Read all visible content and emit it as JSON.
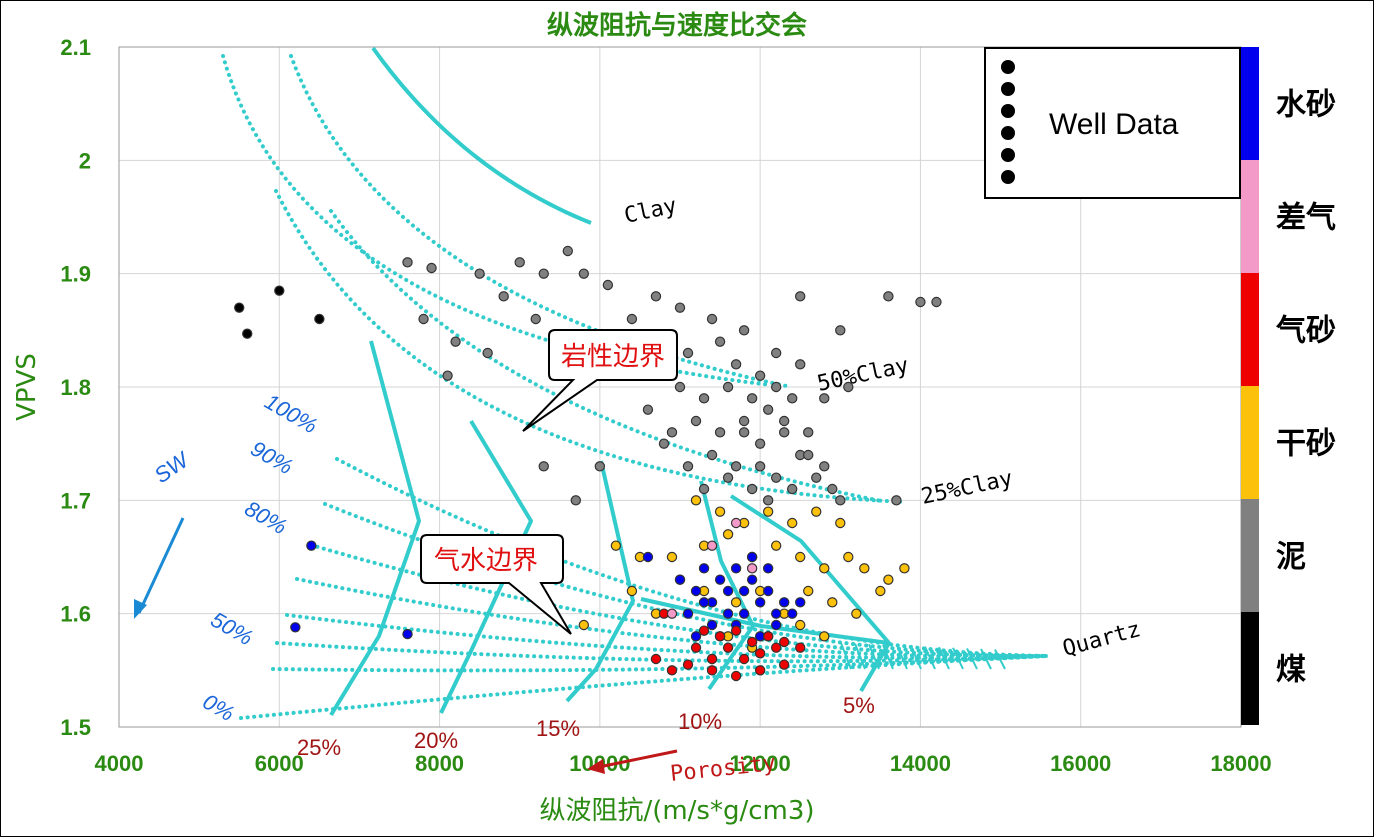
{
  "chart_data": {
    "type": "scatter",
    "title": "纵波阻抗与速度比交会",
    "xlabel": "纵波阻抗/(m/s*g/cm3)",
    "ylabel": "VPVS",
    "xlim": [
      4000,
      18000
    ],
    "ylim": [
      1.5,
      2.1
    ],
    "xticks": [
      "4000",
      "6000",
      "8000",
      "10000",
      "12000",
      "14000",
      "16000",
      "18000"
    ],
    "yticks": [
      "1.5",
      "1.6",
      "1.7",
      "1.8",
      "1.9",
      "2",
      "2.1"
    ],
    "grid": true,
    "legend": {
      "placement": "top-right",
      "label": "Well Data"
    },
    "colorbar": [
      {
        "label": "水砂",
        "color": "#0000ee"
      },
      {
        "label": "差气",
        "color": "#f49ac8"
      },
      {
        "label": "气砂",
        "color": "#ee0000"
      },
      {
        "label": "干砂",
        "color": "#fcc10a"
      },
      {
        "label": "泥",
        "color": "#808080"
      },
      {
        "label": "煤",
        "color": "#000000"
      }
    ],
    "model_labels": {
      "clay": "Clay",
      "clay50": "50%Clay",
      "clay25": "25%Clay",
      "quartz": "Quartz",
      "porosity_axis": "Porosity"
    },
    "sw_labels": [
      "SW",
      "100%",
      "90%",
      "80%",
      "50%",
      "0%"
    ],
    "porosity_labels": [
      "25%",
      "20%",
      "15%",
      "10%",
      "5%"
    ],
    "callouts": [
      "岩性边界",
      "气水边界"
    ],
    "series": [
      {
        "name": "泥",
        "color": "#808080",
        "points": [
          [
            7600,
            1.91
          ],
          [
            7900,
            1.905
          ],
          [
            8500,
            1.9
          ],
          [
            8800,
            1.88
          ],
          [
            9000,
            1.91
          ],
          [
            9300,
            1.9
          ],
          [
            9600,
            1.92
          ],
          [
            9800,
            1.9
          ],
          [
            10100,
            1.89
          ],
          [
            10400,
            1.86
          ],
          [
            10700,
            1.88
          ],
          [
            11000,
            1.87
          ],
          [
            11400,
            1.86
          ],
          [
            11800,
            1.85
          ],
          [
            12500,
            1.88
          ],
          [
            13000,
            1.85
          ],
          [
            13600,
            1.88
          ],
          [
            14000,
            1.875
          ],
          [
            14200,
            1.875
          ],
          [
            7800,
            1.86
          ],
          [
            8200,
            1.84
          ],
          [
            8600,
            1.83
          ],
          [
            8100,
            1.81
          ],
          [
            9200,
            1.86
          ],
          [
            9500,
            1.84
          ],
          [
            10200,
            1.82
          ],
          [
            10500,
            1.84
          ],
          [
            10800,
            1.82
          ],
          [
            11100,
            1.83
          ],
          [
            11500,
            1.84
          ],
          [
            11700,
            1.82
          ],
          [
            12000,
            1.81
          ],
          [
            12200,
            1.83
          ],
          [
            12500,
            1.82
          ],
          [
            12800,
            1.79
          ],
          [
            13100,
            1.8
          ],
          [
            11000,
            1.8
          ],
          [
            11300,
            1.79
          ],
          [
            11600,
            1.8
          ],
          [
            11900,
            1.79
          ],
          [
            12100,
            1.78
          ],
          [
            12300,
            1.77
          ],
          [
            11200,
            1.77
          ],
          [
            11500,
            1.76
          ],
          [
            11800,
            1.77
          ],
          [
            12000,
            1.75
          ],
          [
            12300,
            1.76
          ],
          [
            12600,
            1.76
          ],
          [
            11400,
            1.74
          ],
          [
            11700,
            1.73
          ],
          [
            12000,
            1.73
          ],
          [
            12200,
            1.72
          ],
          [
            12500,
            1.74
          ],
          [
            12800,
            1.73
          ],
          [
            11900,
            1.71
          ],
          [
            12100,
            1.7
          ],
          [
            12400,
            1.71
          ],
          [
            12700,
            1.72
          ],
          [
            13000,
            1.7
          ],
          [
            10800,
            1.75
          ],
          [
            11100,
            1.73
          ],
          [
            10600,
            1.78
          ],
          [
            10900,
            1.76
          ],
          [
            9700,
            1.7
          ],
          [
            9300,
            1.73
          ],
          [
            10000,
            1.73
          ],
          [
            13700,
            1.7
          ],
          [
            12600,
            1.74
          ],
          [
            12900,
            1.71
          ],
          [
            11600,
            1.72
          ],
          [
            11300,
            1.71
          ],
          [
            12200,
            1.8
          ],
          [
            11800,
            1.76
          ],
          [
            12400,
            1.79
          ]
        ]
      },
      {
        "name": "干砂",
        "color": "#fcc10a",
        "points": [
          [
            11200,
            1.7
          ],
          [
            11500,
            1.69
          ],
          [
            11800,
            1.68
          ],
          [
            12100,
            1.69
          ],
          [
            12400,
            1.68
          ],
          [
            12700,
            1.69
          ],
          [
            13000,
            1.68
          ],
          [
            11300,
            1.66
          ],
          [
            11600,
            1.67
          ],
          [
            11900,
            1.65
          ],
          [
            12200,
            1.66
          ],
          [
            12500,
            1.65
          ],
          [
            12800,
            1.64
          ],
          [
            13100,
            1.65
          ],
          [
            13300,
            1.64
          ],
          [
            10900,
            1.65
          ],
          [
            11000,
            1.63
          ],
          [
            11300,
            1.62
          ],
          [
            12600,
            1.62
          ],
          [
            12900,
            1.61
          ],
          [
            13200,
            1.6
          ],
          [
            13500,
            1.62
          ],
          [
            12300,
            1.6
          ],
          [
            12500,
            1.59
          ],
          [
            12800,
            1.58
          ],
          [
            12100,
            1.58
          ],
          [
            11900,
            1.57
          ],
          [
            11600,
            1.58
          ],
          [
            11400,
            1.56
          ],
          [
            10400,
            1.62
          ],
          [
            10700,
            1.6
          ],
          [
            9800,
            1.59
          ],
          [
            10200,
            1.66
          ],
          [
            10500,
            1.65
          ],
          [
            13600,
            1.63
          ],
          [
            13800,
            1.64
          ],
          [
            12000,
            1.62
          ],
          [
            11700,
            1.61
          ]
        ]
      },
      {
        "name": "水砂",
        "color": "#0000ee",
        "points": [
          [
            11000,
            1.63
          ],
          [
            11200,
            1.62
          ],
          [
            11400,
            1.61
          ],
          [
            11600,
            1.6
          ],
          [
            11800,
            1.62
          ],
          [
            12000,
            1.61
          ],
          [
            12200,
            1.6
          ],
          [
            11300,
            1.64
          ],
          [
            11500,
            1.63
          ],
          [
            11700,
            1.64
          ],
          [
            11900,
            1.63
          ],
          [
            12100,
            1.62
          ],
          [
            12300,
            1.61
          ],
          [
            11100,
            1.6
          ],
          [
            11400,
            1.59
          ],
          [
            11700,
            1.59
          ],
          [
            12000,
            1.58
          ],
          [
            12200,
            1.59
          ],
          [
            12400,
            1.6
          ],
          [
            11200,
            1.58
          ],
          [
            11500,
            1.58
          ],
          [
            11800,
            1.6
          ],
          [
            11600,
            1.62
          ],
          [
            11900,
            1.65
          ],
          [
            12100,
            1.64
          ],
          [
            11300,
            1.61
          ],
          [
            12500,
            1.61
          ],
          [
            6400,
            1.66
          ],
          [
            6200,
            1.588
          ],
          [
            7600,
            1.582
          ],
          [
            9300,
            1.652
          ],
          [
            10600,
            1.65
          ]
        ]
      },
      {
        "name": "气砂",
        "color": "#ee0000",
        "points": [
          [
            11200,
            1.57
          ],
          [
            11400,
            1.56
          ],
          [
            11600,
            1.57
          ],
          [
            11800,
            1.56
          ],
          [
            12000,
            1.565
          ],
          [
            12200,
            1.57
          ],
          [
            11300,
            1.585
          ],
          [
            11500,
            1.58
          ],
          [
            11700,
            1.585
          ],
          [
            11900,
            1.575
          ],
          [
            12100,
            1.58
          ],
          [
            12300,
            1.575
          ],
          [
            12500,
            1.57
          ],
          [
            11100,
            1.555
          ],
          [
            11400,
            1.55
          ],
          [
            11700,
            1.545
          ],
          [
            12000,
            1.55
          ],
          [
            12300,
            1.555
          ],
          [
            10700,
            1.56
          ],
          [
            10900,
            1.55
          ],
          [
            10800,
            1.6
          ]
        ]
      },
      {
        "name": "差气",
        "color": "#f49ac8",
        "points": [
          [
            11700,
            1.68
          ],
          [
            11400,
            1.66
          ],
          [
            10900,
            1.6
          ],
          [
            11900,
            1.64
          ]
        ]
      },
      {
        "name": "煤",
        "color": "#000000",
        "points": [
          [
            5500,
            1.87
          ],
          [
            5600,
            1.847
          ],
          [
            6000,
            1.885
          ],
          [
            6500,
            1.86
          ]
        ]
      }
    ]
  }
}
